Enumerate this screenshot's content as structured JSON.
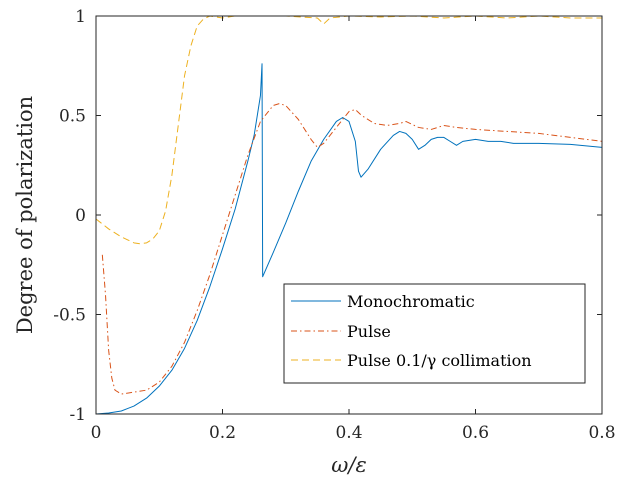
{
  "chart_data": {
    "type": "line",
    "title": "",
    "xlabel": "ω/ε",
    "ylabel": "Degree of polarization",
    "xlim": [
      0,
      0.8
    ],
    "ylim": [
      -1,
      1
    ],
    "xticks": [
      0,
      0.2,
      0.4,
      0.6,
      0.8
    ],
    "xtick_labels": [
      "0",
      "0.2",
      "0.4",
      "0.6",
      "0.8"
    ],
    "yticks": [
      -1,
      -0.5,
      0,
      0.5,
      1
    ],
    "ytick_labels": [
      "-1",
      "-0.5",
      "0",
      "0.5",
      "1"
    ],
    "grid": false,
    "legend_position": "bottom-right",
    "series": [
      {
        "name": "Monochromatic",
        "color": "#0072BD",
        "dash": "solid",
        "points": [
          [
            0,
            -1
          ],
          [
            0.02,
            -0.995
          ],
          [
            0.04,
            -0.985
          ],
          [
            0.06,
            -0.96
          ],
          [
            0.08,
            -0.92
          ],
          [
            0.1,
            -0.86
          ],
          [
            0.12,
            -0.78
          ],
          [
            0.14,
            -0.67
          ],
          [
            0.16,
            -0.53
          ],
          [
            0.18,
            -0.36
          ],
          [
            0.2,
            -0.17
          ],
          [
            0.22,
            0.03
          ],
          [
            0.24,
            0.27
          ],
          [
            0.25,
            0.4
          ],
          [
            0.26,
            0.6
          ],
          [
            0.2625,
            0.76
          ],
          [
            0.2635,
            -0.31
          ],
          [
            0.28,
            -0.19
          ],
          [
            0.3,
            -0.04
          ],
          [
            0.32,
            0.12
          ],
          [
            0.34,
            0.27
          ],
          [
            0.36,
            0.38
          ],
          [
            0.38,
            0.47
          ],
          [
            0.39,
            0.49
          ],
          [
            0.4,
            0.47
          ],
          [
            0.41,
            0.37
          ],
          [
            0.415,
            0.22
          ],
          [
            0.419,
            0.19
          ],
          [
            0.43,
            0.23
          ],
          [
            0.45,
            0.33
          ],
          [
            0.47,
            0.4
          ],
          [
            0.48,
            0.42
          ],
          [
            0.49,
            0.41
          ],
          [
            0.5,
            0.38
          ],
          [
            0.51,
            0.33
          ],
          [
            0.52,
            0.35
          ],
          [
            0.53,
            0.38
          ],
          [
            0.54,
            0.39
          ],
          [
            0.55,
            0.39
          ],
          [
            0.56,
            0.37
          ],
          [
            0.57,
            0.35
          ],
          [
            0.58,
            0.37
          ],
          [
            0.6,
            0.38
          ],
          [
            0.62,
            0.37
          ],
          [
            0.64,
            0.37
          ],
          [
            0.66,
            0.36
          ],
          [
            0.7,
            0.36
          ],
          [
            0.75,
            0.355
          ],
          [
            0.8,
            0.34
          ]
        ]
      },
      {
        "name": "Pulse",
        "color": "#D95319",
        "dash": "dashdot",
        "points": [
          [
            0.01,
            -0.2
          ],
          [
            0.015,
            -0.4
          ],
          [
            0.02,
            -0.68
          ],
          [
            0.025,
            -0.82
          ],
          [
            0.03,
            -0.88
          ],
          [
            0.04,
            -0.9
          ],
          [
            0.06,
            -0.89
          ],
          [
            0.08,
            -0.88
          ],
          [
            0.1,
            -0.84
          ],
          [
            0.12,
            -0.76
          ],
          [
            0.14,
            -0.64
          ],
          [
            0.16,
            -0.48
          ],
          [
            0.18,
            -0.3
          ],
          [
            0.2,
            -0.1
          ],
          [
            0.22,
            0.1
          ],
          [
            0.24,
            0.3
          ],
          [
            0.26,
            0.47
          ],
          [
            0.28,
            0.55
          ],
          [
            0.29,
            0.56
          ],
          [
            0.3,
            0.55
          ],
          [
            0.32,
            0.48
          ],
          [
            0.34,
            0.38
          ],
          [
            0.35,
            0.34
          ],
          [
            0.36,
            0.36
          ],
          [
            0.38,
            0.44
          ],
          [
            0.4,
            0.52
          ],
          [
            0.41,
            0.53
          ],
          [
            0.42,
            0.5
          ],
          [
            0.44,
            0.46
          ],
          [
            0.46,
            0.45
          ],
          [
            0.48,
            0.46
          ],
          [
            0.49,
            0.47
          ],
          [
            0.51,
            0.44
          ],
          [
            0.53,
            0.43
          ],
          [
            0.55,
            0.45
          ],
          [
            0.57,
            0.44
          ],
          [
            0.6,
            0.43
          ],
          [
            0.65,
            0.42
          ],
          [
            0.7,
            0.41
          ],
          [
            0.75,
            0.39
          ],
          [
            0.8,
            0.37
          ]
        ]
      },
      {
        "name": "Pulse 0.1/γ collimation",
        "color": "#EDB120",
        "dash": "dashed",
        "points": [
          [
            0,
            -0.02
          ],
          [
            0.02,
            -0.07
          ],
          [
            0.04,
            -0.11
          ],
          [
            0.06,
            -0.14
          ],
          [
            0.07,
            -0.145
          ],
          [
            0.08,
            -0.14
          ],
          [
            0.09,
            -0.12
          ],
          [
            0.1,
            -0.08
          ],
          [
            0.11,
            0.02
          ],
          [
            0.12,
            0.2
          ],
          [
            0.13,
            0.45
          ],
          [
            0.14,
            0.7
          ],
          [
            0.15,
            0.85
          ],
          [
            0.16,
            0.95
          ],
          [
            0.17,
            0.985
          ],
          [
            0.18,
            1.0
          ],
          [
            0.2,
            0.99
          ],
          [
            0.22,
            1.0
          ],
          [
            0.25,
            1.0
          ],
          [
            0.3,
            1.0
          ],
          [
            0.35,
            0.99
          ],
          [
            0.36,
            0.96
          ],
          [
            0.37,
            0.99
          ],
          [
            0.4,
            1.0
          ],
          [
            0.45,
            0.995
          ],
          [
            0.5,
            1.0
          ],
          [
            0.55,
            0.99
          ],
          [
            0.6,
            1.0
          ],
          [
            0.65,
            0.99
          ],
          [
            0.7,
            1.0
          ],
          [
            0.75,
            0.99
          ],
          [
            0.8,
            0.99
          ]
        ]
      }
    ]
  }
}
